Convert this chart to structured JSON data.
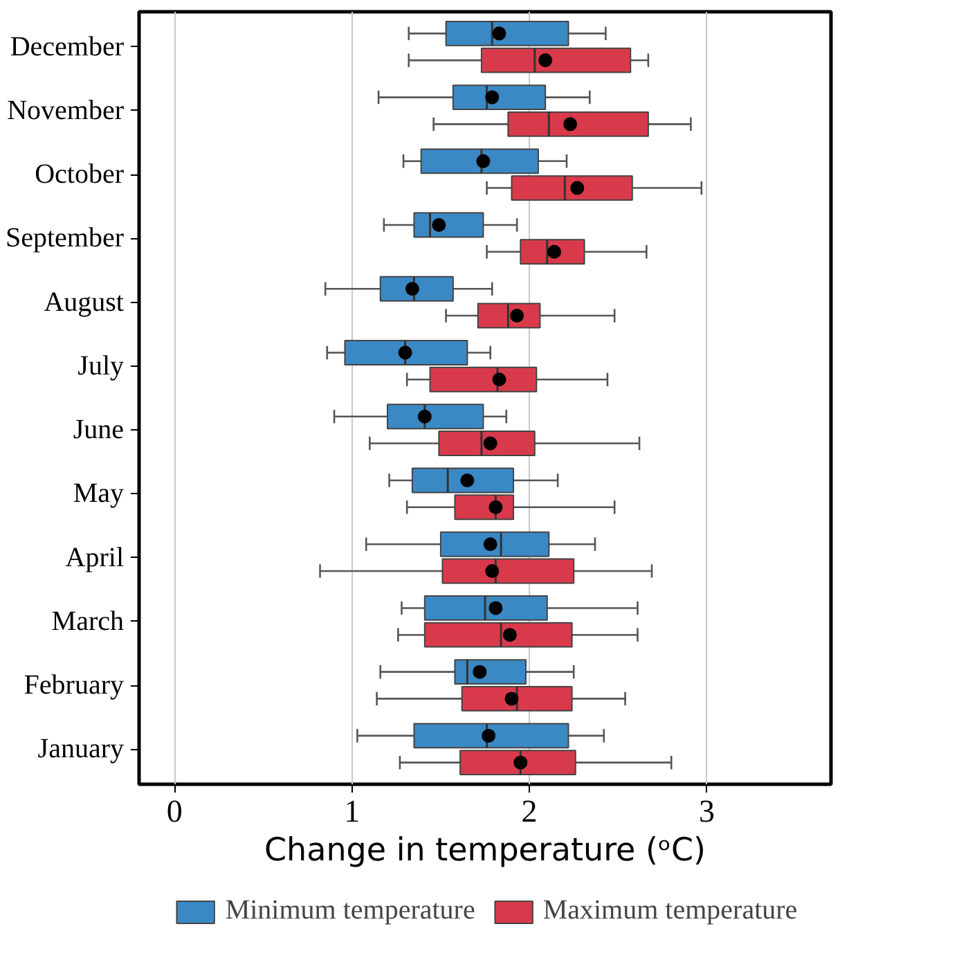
{
  "chart_data": {
    "type": "box",
    "orientation": "horizontal",
    "xlabel": "Change in temperature (ᵒC)",
    "xlim": [
      -0.2,
      3.7
    ],
    "xticks": [
      0,
      1,
      2,
      3
    ],
    "grid": "x",
    "legend": "bottom",
    "categories": [
      "December",
      "November",
      "October",
      "September",
      "August",
      "July",
      "June",
      "May",
      "April",
      "March",
      "February",
      "January"
    ],
    "series": [
      {
        "name": "Minimum temperature",
        "color": "#3a89c5",
        "boxes": [
          {
            "low": 1.32,
            "q1": 1.53,
            "median": 1.79,
            "q3": 2.22,
            "high": 2.43,
            "mean": 1.83
          },
          {
            "low": 1.15,
            "q1": 1.57,
            "median": 1.76,
            "q3": 2.09,
            "high": 2.34,
            "mean": 1.79
          },
          {
            "low": 1.29,
            "q1": 1.39,
            "median": 1.73,
            "q3": 2.05,
            "high": 2.21,
            "mean": 1.74
          },
          {
            "low": 1.18,
            "q1": 1.35,
            "median": 1.44,
            "q3": 1.74,
            "high": 1.93,
            "mean": 1.49
          },
          {
            "low": 0.85,
            "q1": 1.16,
            "median": 1.35,
            "q3": 1.57,
            "high": 1.79,
            "mean": 1.34
          },
          {
            "low": 0.86,
            "q1": 0.96,
            "median": 1.3,
            "q3": 1.65,
            "high": 1.78,
            "mean": 1.3
          },
          {
            "low": 0.9,
            "q1": 1.2,
            "median": 1.41,
            "q3": 1.74,
            "high": 1.87,
            "mean": 1.41
          },
          {
            "low": 1.21,
            "q1": 1.34,
            "median": 1.54,
            "q3": 1.91,
            "high": 2.16,
            "mean": 1.65
          },
          {
            "low": 1.08,
            "q1": 1.5,
            "median": 1.84,
            "q3": 2.11,
            "high": 2.37,
            "mean": 1.78
          },
          {
            "low": 1.28,
            "q1": 1.41,
            "median": 1.75,
            "q3": 2.1,
            "high": 2.61,
            "mean": 1.81
          },
          {
            "low": 1.16,
            "q1": 1.58,
            "median": 1.65,
            "q3": 1.98,
            "high": 2.25,
            "mean": 1.72
          },
          {
            "low": 1.03,
            "q1": 1.35,
            "median": 1.76,
            "q3": 2.22,
            "high": 2.42,
            "mean": 1.77
          }
        ]
      },
      {
        "name": "Maximum temperature",
        "color": "#d93a4b",
        "boxes": [
          {
            "low": 1.32,
            "q1": 1.73,
            "median": 2.03,
            "q3": 2.57,
            "high": 2.67,
            "mean": 2.09
          },
          {
            "low": 1.46,
            "q1": 1.88,
            "median": 2.11,
            "q3": 2.67,
            "high": 2.91,
            "mean": 2.23
          },
          {
            "low": 1.76,
            "q1": 1.9,
            "median": 2.2,
            "q3": 2.58,
            "high": 2.97,
            "mean": 2.27
          },
          {
            "low": 1.76,
            "q1": 1.95,
            "median": 2.1,
            "q3": 2.31,
            "high": 2.66,
            "mean": 2.14
          },
          {
            "low": 1.53,
            "q1": 1.71,
            "median": 1.88,
            "q3": 2.06,
            "high": 2.48,
            "mean": 1.93
          },
          {
            "low": 1.31,
            "q1": 1.44,
            "median": 1.82,
            "q3": 2.04,
            "high": 2.44,
            "mean": 1.83
          },
          {
            "low": 1.1,
            "q1": 1.49,
            "median": 1.73,
            "q3": 2.03,
            "high": 2.62,
            "mean": 1.78
          },
          {
            "low": 1.31,
            "q1": 1.58,
            "median": 1.81,
            "q3": 1.91,
            "high": 2.48,
            "mean": 1.81
          },
          {
            "low": 0.82,
            "q1": 1.51,
            "median": 1.81,
            "q3": 2.25,
            "high": 2.69,
            "mean": 1.79
          },
          {
            "low": 1.26,
            "q1": 1.41,
            "median": 1.84,
            "q3": 2.24,
            "high": 2.61,
            "mean": 1.89
          },
          {
            "low": 1.14,
            "q1": 1.62,
            "median": 1.93,
            "q3": 2.24,
            "high": 2.54,
            "mean": 1.9
          },
          {
            "low": 1.27,
            "q1": 1.61,
            "median": 1.95,
            "q3": 2.26,
            "high": 2.8,
            "mean": 1.95
          }
        ]
      }
    ]
  }
}
